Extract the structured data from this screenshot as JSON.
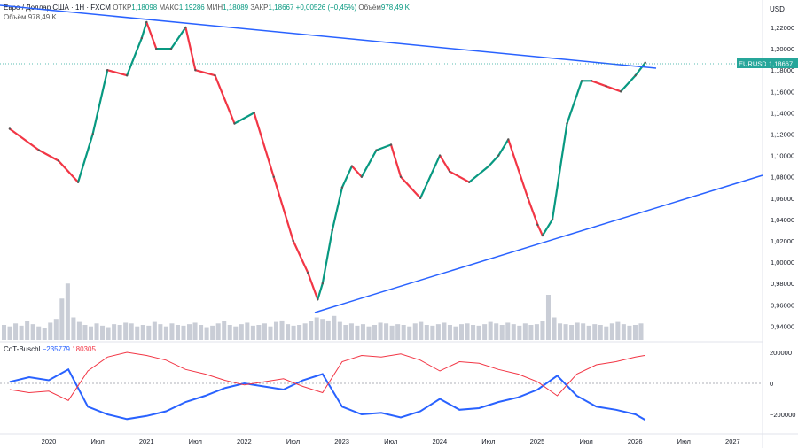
{
  "header": {
    "symbol_title": "Евро / Доллар США · 1Н · FXCM",
    "open_label": "ОТКР",
    "open": "1,18098",
    "high_label": "МАКС",
    "high": "1,19286",
    "low_label": "МИН",
    "low": "1,18089",
    "close_label": "ЗАКР",
    "close": "1,18667",
    "change": "+0,00526 (+0,45%)",
    "volume_label": "Объём",
    "volume": "978,49 K",
    "volume_line_label": "Объём",
    "volume_line_value": "978,49 K"
  },
  "currency": "USD",
  "price_badge": {
    "symbol": "EURUSD",
    "value": "1,18667"
  },
  "cot": {
    "name": "CoT-Buschl",
    "value1": "−235779",
    "value2": "180305"
  },
  "colors": {
    "up": "#089981",
    "down": "#f23645",
    "line": "#2962ff",
    "badge": "#26a69a",
    "cot_red": "#f23645",
    "cot_blue": "#2962ff",
    "volume": "#c9cdd6"
  },
  "chart_data": {
    "type": "line",
    "title": "",
    "price_axis": {
      "ylim": [
        0.925,
        1.245
      ],
      "ticks": [
        "1,22000",
        "1,20000",
        "1,18000",
        "1,16000",
        "1,14000",
        "1,12000",
        "1,10000",
        "1,08000",
        "1,06000",
        "1,04000",
        "1,02000",
        "1,00000",
        "0,98000",
        "0,96000",
        "0,94000"
      ]
    },
    "cot_axis": {
      "ylim": [
        -300000,
        250000
      ],
      "ticks": [
        "200000",
        "0",
        "−200000"
      ]
    },
    "x_axis": {
      "labels": [
        "2020",
        "Июл",
        "2021",
        "Июл",
        "2022",
        "Июл",
        "2023",
        "Июл",
        "2024",
        "Июл",
        "2025",
        "Июл",
        "2026",
        "Июл",
        "2027"
      ]
    },
    "price_series": {
      "name": "EURUSD",
      "x": [
        2019.6,
        2019.9,
        2020.1,
        2020.3,
        2020.45,
        2020.6,
        2020.8,
        2020.95,
        2021.0,
        2021.1,
        2021.25,
        2021.4,
        2021.5,
        2021.7,
        2021.9,
        2022.1,
        2022.3,
        2022.5,
        2022.65,
        2022.75,
        2022.8,
        2022.9,
        2023.0,
        2023.1,
        2023.2,
        2023.35,
        2023.5,
        2023.6,
        2023.8,
        2024.0,
        2024.1,
        2024.3,
        2024.5,
        2024.6,
        2024.7,
        2024.9,
        2025.0,
        2025.05,
        2025.15,
        2025.3,
        2025.45,
        2025.55,
        2025.7,
        2025.85,
        2026.0,
        2026.1
      ],
      "y": [
        1.125,
        1.105,
        1.095,
        1.075,
        1.12,
        1.18,
        1.175,
        1.21,
        1.225,
        1.2,
        1.2,
        1.22,
        1.18,
        1.175,
        1.13,
        1.14,
        1.08,
        1.02,
        0.99,
        0.965,
        0.98,
        1.03,
        1.07,
        1.09,
        1.08,
        1.105,
        1.11,
        1.08,
        1.06,
        1.1,
        1.085,
        1.075,
        1.09,
        1.1,
        1.115,
        1.06,
        1.035,
        1.025,
        1.04,
        1.13,
        1.17,
        1.17,
        1.165,
        1.16,
        1.175,
        1.187
      ]
    },
    "volume_series": {
      "name": "Объём",
      "values": [
        20,
        18,
        22,
        19,
        25,
        21,
        18,
        16,
        23,
        28,
        55,
        75,
        30,
        24,
        20,
        18,
        22,
        19,
        17,
        21,
        20,
        23,
        22,
        18,
        20,
        19,
        24,
        21,
        18,
        22,
        20,
        19,
        21,
        23,
        20,
        17,
        19,
        22,
        25,
        20,
        18,
        21,
        23,
        19,
        20,
        22,
        18,
        24,
        26,
        21,
        19,
        20,
        22,
        25,
        30,
        28,
        26,
        32,
        24,
        20,
        22,
        19,
        21,
        18,
        20,
        23,
        22,
        19,
        21,
        20,
        18,
        22,
        24,
        20,
        19,
        21,
        23,
        20,
        18,
        21,
        22,
        20,
        19,
        21,
        24,
        22,
        20,
        23,
        21,
        19,
        22,
        20,
        21,
        25,
        60,
        30,
        22,
        21,
        20,
        23,
        22,
        19,
        21,
        20,
        18,
        22,
        24,
        21,
        19,
        20,
        22
      ]
    },
    "cot_series": [
      {
        "name": "−235779",
        "color": "#2962ff",
        "x": [
          2019.6,
          2019.8,
          2020.0,
          2020.2,
          2020.4,
          2020.6,
          2020.8,
          2021.0,
          2021.2,
          2021.4,
          2021.6,
          2021.8,
          2022.0,
          2022.2,
          2022.4,
          2022.6,
          2022.8,
          2023.0,
          2023.2,
          2023.4,
          2023.6,
          2023.8,
          2024.0,
          2024.2,
          2024.4,
          2024.6,
          2024.8,
          2025.0,
          2025.2,
          2025.4,
          2025.6,
          2025.8,
          2026.0,
          2026.1
        ],
        "y": [
          10000,
          40000,
          20000,
          90000,
          -150000,
          -200000,
          -230000,
          -210000,
          -180000,
          -120000,
          -80000,
          -30000,
          0,
          -20000,
          -40000,
          20000,
          60000,
          -150000,
          -200000,
          -190000,
          -220000,
          -180000,
          -100000,
          -170000,
          -160000,
          -120000,
          -90000,
          -40000,
          50000,
          -80000,
          -150000,
          -170000,
          -200000,
          -235779
        ]
      },
      {
        "name": "180305",
        "color": "#f23645",
        "x": [
          2019.6,
          2019.8,
          2020.0,
          2020.2,
          2020.4,
          2020.6,
          2020.8,
          2021.0,
          2021.2,
          2021.4,
          2021.6,
          2021.8,
          2022.0,
          2022.2,
          2022.4,
          2022.6,
          2022.8,
          2023.0,
          2023.2,
          2023.4,
          2023.6,
          2023.8,
          2024.0,
          2024.2,
          2024.4,
          2024.6,
          2024.8,
          2025.0,
          2025.2,
          2025.4,
          2025.6,
          2025.8,
          2026.0,
          2026.1
        ],
        "y": [
          -40000,
          -60000,
          -50000,
          -110000,
          80000,
          170000,
          200000,
          180000,
          150000,
          90000,
          60000,
          20000,
          -10000,
          10000,
          30000,
          -20000,
          -60000,
          140000,
          180000,
          170000,
          190000,
          150000,
          80000,
          140000,
          130000,
          90000,
          60000,
          10000,
          -80000,
          60000,
          120000,
          140000,
          170000,
          180305
        ]
      }
    ]
  }
}
